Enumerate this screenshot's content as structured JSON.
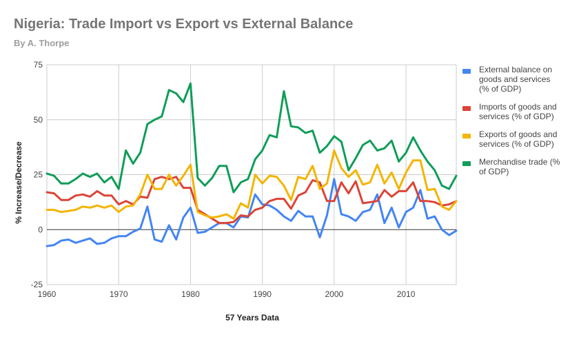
{
  "header": {
    "title": "Nigeria: Trade Import vs Export vs External Balance",
    "subtitle": "By A. Thorpe"
  },
  "chart_data": {
    "type": "line",
    "title": "Nigeria: Trade Import vs Export vs External Balance",
    "subtitle": "By A. Thorpe",
    "xlabel": "57 Years Data",
    "ylabel": "% Increase/Decrease",
    "xlim": [
      1960,
      2017
    ],
    "ylim": [
      -25,
      75
    ],
    "x_ticks": [
      "1960",
      "1970",
      "1980",
      "1990",
      "2000",
      "2010"
    ],
    "y_ticks": [
      "-25",
      "0",
      "25",
      "50",
      "75"
    ],
    "grid": true,
    "legend_position": "right",
    "x": [
      1960,
      1961,
      1962,
      1963,
      1964,
      1965,
      1966,
      1967,
      1968,
      1969,
      1970,
      1971,
      1972,
      1973,
      1974,
      1975,
      1976,
      1977,
      1978,
      1979,
      1980,
      1981,
      1982,
      1983,
      1984,
      1985,
      1986,
      1987,
      1988,
      1989,
      1990,
      1991,
      1992,
      1993,
      1994,
      1995,
      1996,
      1997,
      1998,
      1999,
      2000,
      2001,
      2002,
      2003,
      2004,
      2005,
      2006,
      2007,
      2008,
      2009,
      2010,
      2011,
      2012,
      2013,
      2014,
      2015,
      2016,
      2017
    ],
    "series": [
      {
        "name": "External balance on goods and services (% of GDP)",
        "color": "#4285f4",
        "values": [
          -7.5,
          -7,
          -5,
          -4.5,
          -6,
          -5,
          -4,
          -6.5,
          -6,
          -4,
          -3,
          -3,
          -1,
          0.5,
          10.5,
          -4.5,
          -5.5,
          2,
          -4.5,
          5.5,
          10,
          -1.5,
          -1,
          1,
          3,
          3,
          1,
          6,
          5.5,
          16,
          11.5,
          11,
          9,
          6,
          4,
          8.5,
          6,
          6,
          -3.5,
          6.5,
          23,
          7,
          6,
          4,
          8,
          9,
          16,
          3,
          10,
          1,
          8,
          10,
          18,
          5,
          6,
          0,
          -2.5,
          -0.5
        ]
      },
      {
        "name": "Imports of goods and services (% of GDP)",
        "color": "#db4437",
        "values": [
          17,
          16.5,
          13.5,
          13.5,
          15.5,
          16,
          15,
          17.5,
          15.5,
          15.5,
          11.5,
          13,
          11.5,
          15,
          14.5,
          23,
          24,
          23,
          24,
          19,
          19,
          9,
          7,
          5,
          3,
          3,
          3.5,
          6.5,
          6,
          9,
          10,
          13,
          14,
          14,
          9.5,
          15.5,
          17,
          22.5,
          21.5,
          13,
          13,
          21.5,
          16.5,
          22,
          12,
          12.5,
          13,
          18,
          15,
          17.5,
          17.5,
          21.5,
          13,
          13,
          12.5,
          11,
          11.5,
          13
        ]
      },
      {
        "name": "Exports of goods and services (% of GDP)",
        "color": "#f4b400",
        "values": [
          9,
          9,
          8,
          8.5,
          9,
          10.5,
          10,
          11,
          10,
          11,
          8,
          10.5,
          11,
          16,
          25,
          18.5,
          18.5,
          25,
          20,
          24.5,
          29.5,
          8,
          6.5,
          5.5,
          6,
          7,
          5,
          12,
          10,
          25,
          21,
          24.5,
          24,
          20,
          13.5,
          24,
          23,
          29,
          18.5,
          21,
          36,
          28,
          24,
          27,
          20.5,
          21.5,
          29.5,
          21,
          26,
          18.5,
          26,
          31.5,
          31.5,
          18,
          18.5,
          10.5,
          9,
          13
        ]
      },
      {
        "name": "Merchandise trade (% of GDP)",
        "color": "#0f9d58",
        "values": [
          25.5,
          24.5,
          21,
          21,
          23,
          25.5,
          24,
          25.5,
          21.5,
          24,
          18.5,
          36,
          30,
          35,
          48,
          50,
          51.5,
          63.5,
          62,
          58,
          66.5,
          23.5,
          20,
          23.5,
          29,
          29,
          17,
          21.5,
          23,
          32,
          36,
          43,
          42,
          63,
          47,
          46.5,
          44,
          45,
          35,
          38,
          42.5,
          40,
          27,
          32.5,
          38.5,
          40.5,
          36,
          37,
          40.5,
          31,
          35,
          42,
          36,
          31,
          27,
          20,
          18.5,
          24.5
        ]
      }
    ]
  }
}
